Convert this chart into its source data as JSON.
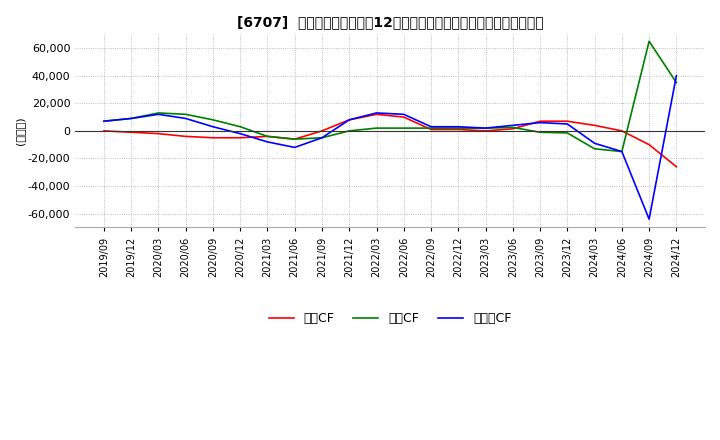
{
  "title": "[6707]  キャッシュフローの12か月移動合計の対前年同期増減額の推移",
  "ylabel": "(百万円)",
  "ylim": [
    -70000,
    70000
  ],
  "yticks": [
    -60000,
    -40000,
    -20000,
    0,
    20000,
    40000,
    60000
  ],
  "legend_labels": [
    "営業CF",
    "投資CF",
    "フリーCF"
  ],
  "colors": {
    "eigyo": "#ff0000",
    "toshi": "#008000",
    "free": "#0000ff"
  },
  "x_labels": [
    "2019/09",
    "2019/12",
    "2020/03",
    "2020/06",
    "2020/09",
    "2020/12",
    "2021/03",
    "2021/06",
    "2021/09",
    "2021/12",
    "2022/03",
    "2022/06",
    "2022/09",
    "2022/12",
    "2023/03",
    "2023/06",
    "2023/09",
    "2023/12",
    "2024/03",
    "2024/06",
    "2024/09",
    "2024/12"
  ],
  "eigyo": [
    0,
    -1000,
    -2000,
    -4000,
    -5000,
    -5000,
    -4000,
    -6000,
    0,
    8000,
    12000,
    10000,
    1000,
    1000,
    0,
    1500,
    7000,
    7000,
    4000,
    0,
    -10000,
    -26000
  ],
  "toshi": [
    7000,
    9000,
    13000,
    12000,
    8000,
    3000,
    -4000,
    -6000,
    -5000,
    0,
    2000,
    2000,
    2000,
    2000,
    2000,
    2500,
    -1000,
    -1500,
    -13000,
    -15000,
    65000,
    35000
  ],
  "free": [
    7000,
    9000,
    12000,
    9000,
    3000,
    -2000,
    -8000,
    -12000,
    -5000,
    8000,
    13000,
    12000,
    3000,
    3000,
    2000,
    4000,
    6000,
    5000,
    -9000,
    -15000,
    -64000,
    40000
  ]
}
